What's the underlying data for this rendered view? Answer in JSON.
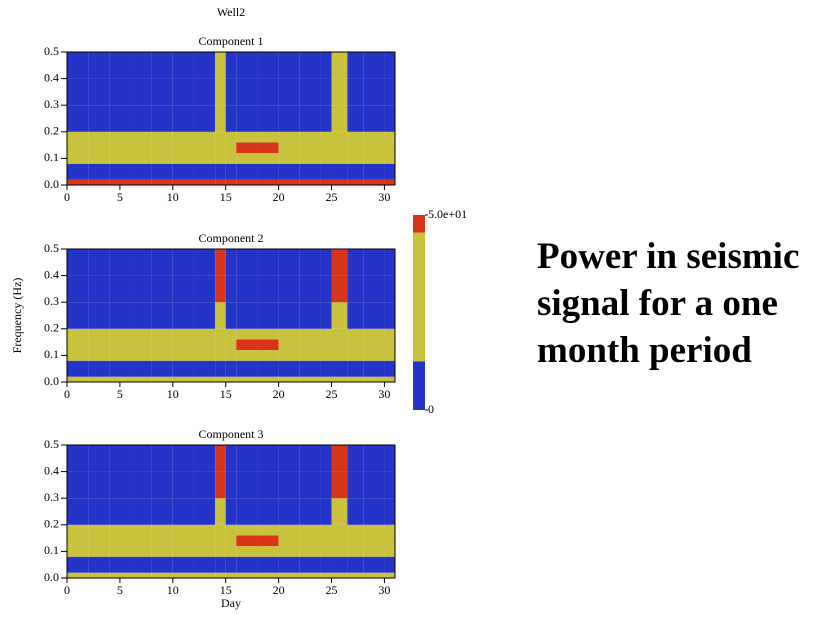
{
  "title": "Well2",
  "caption": [
    "Power in seismic",
    "signal for a one",
    "month period"
  ],
  "colorbar": {
    "lim": [
      0,
      50
    ],
    "ticks": [
      {
        "value": 50,
        "label": "5.0e+01"
      },
      0
    ],
    "levels": [
      {
        "from": 0,
        "color": "#2434c8"
      },
      {
        "from": 12.5,
        "color": "#c9c23c"
      },
      {
        "from": 45.5,
        "color": "#d8341a"
      }
    ]
  },
  "chart_data": [
    {
      "type": "heatmap",
      "title": "Component 1",
      "x_bins": [
        0,
        2,
        4,
        6,
        8,
        10,
        12,
        14,
        15,
        16,
        18,
        20,
        22,
        24,
        25,
        26.5,
        28,
        30,
        31
      ],
      "y_bins": [
        0,
        0.02,
        0.08,
        0.12,
        0.16,
        0.2,
        0.3,
        0.4,
        0.5
      ],
      "z": [
        [
          47,
          47,
          47,
          47,
          47,
          47,
          47,
          47,
          47,
          47,
          47,
          47,
          47,
          47,
          47,
          47,
          47,
          47
        ],
        [
          10,
          10,
          10,
          10,
          10,
          10,
          10,
          10,
          10,
          10,
          10,
          10,
          10,
          10,
          10,
          10,
          10,
          10
        ],
        [
          14,
          14,
          14,
          14,
          14,
          14,
          14,
          14,
          14,
          30,
          30,
          14,
          14,
          14,
          14,
          14,
          14,
          14
        ],
        [
          20,
          20,
          20,
          20,
          20,
          20,
          20,
          20,
          30,
          47,
          47,
          20,
          20,
          20,
          20,
          20,
          20,
          20
        ],
        [
          16,
          16,
          14,
          14,
          14,
          14,
          14,
          14,
          14,
          14,
          14,
          14,
          14,
          14,
          14,
          14,
          14,
          14
        ],
        [
          6,
          6,
          6,
          6,
          6,
          6,
          6,
          30,
          6,
          6,
          6,
          6,
          6,
          6,
          30,
          6,
          6,
          6
        ],
        [
          5,
          5,
          5,
          5,
          5,
          5,
          5,
          30,
          5,
          5,
          5,
          5,
          5,
          5,
          30,
          5,
          5,
          5
        ],
        [
          5,
          5,
          5,
          5,
          5,
          5,
          5,
          30,
          5,
          5,
          5,
          5,
          5,
          5,
          30,
          5,
          5,
          5
        ]
      ],
      "xlim": [
        0,
        31
      ],
      "ylim": [
        0,
        0.5
      ],
      "xticks": [
        0,
        5,
        10,
        15,
        20,
        25,
        30
      ],
      "yticks": [
        {
          "value": 0,
          "label": "0.0"
        },
        0.1,
        0.2,
        0.3,
        0.4,
        0.5
      ]
    },
    {
      "type": "heatmap",
      "title": "Component 2",
      "ylabel": "Frequency (Hz)",
      "x_bins": [
        0,
        2,
        4,
        6,
        8,
        10,
        12,
        14,
        15,
        16,
        18,
        20,
        22,
        24,
        25,
        26.5,
        28,
        30,
        31
      ],
      "y_bins": [
        0,
        0.02,
        0.08,
        0.12,
        0.16,
        0.2,
        0.3,
        0.4,
        0.5
      ],
      "z": [
        [
          28,
          28,
          28,
          28,
          28,
          28,
          28,
          28,
          28,
          28,
          28,
          28,
          28,
          28,
          28,
          28,
          28,
          28
        ],
        [
          8,
          8,
          8,
          8,
          8,
          8,
          8,
          8,
          8,
          8,
          8,
          8,
          8,
          8,
          8,
          8,
          8,
          8
        ],
        [
          16,
          16,
          16,
          16,
          16,
          16,
          16,
          16,
          16,
          30,
          30,
          16,
          16,
          16,
          16,
          16,
          16,
          16
        ],
        [
          22,
          22,
          22,
          22,
          22,
          22,
          22,
          22,
          30,
          47,
          47,
          22,
          22,
          22,
          22,
          22,
          22,
          22
        ],
        [
          18,
          18,
          18,
          18,
          18,
          18,
          18,
          18,
          18,
          18,
          18,
          18,
          18,
          18,
          18,
          18,
          18,
          18
        ],
        [
          12,
          12,
          12,
          12,
          12,
          12,
          12,
          30,
          12,
          12,
          12,
          12,
          12,
          12,
          30,
          12,
          12,
          12
        ],
        [
          8,
          8,
          8,
          8,
          8,
          8,
          8,
          47,
          8,
          8,
          8,
          8,
          8,
          8,
          47,
          8,
          8,
          8
        ],
        [
          8,
          8,
          8,
          8,
          8,
          8,
          8,
          47,
          8,
          8,
          8,
          8,
          8,
          8,
          47,
          8,
          8,
          8
        ]
      ],
      "xlim": [
        0,
        31
      ],
      "ylim": [
        0,
        0.5
      ],
      "xticks": [
        0,
        5,
        10,
        15,
        20,
        25,
        30
      ],
      "yticks": [
        {
          "value": 0,
          "label": "0.0"
        },
        0.1,
        0.2,
        0.3,
        0.4,
        0.5
      ]
    },
    {
      "type": "heatmap",
      "title": "Component 3",
      "xlabel": "Day",
      "x_bins": [
        0,
        2,
        4,
        6,
        8,
        10,
        12,
        14,
        15,
        16,
        18,
        20,
        22,
        24,
        25,
        26.5,
        28,
        30,
        31
      ],
      "y_bins": [
        0,
        0.02,
        0.08,
        0.12,
        0.16,
        0.2,
        0.3,
        0.4,
        0.5
      ],
      "z": [
        [
          28,
          28,
          28,
          28,
          28,
          28,
          28,
          28,
          28,
          28,
          28,
          28,
          28,
          28,
          28,
          28,
          28,
          28
        ],
        [
          8,
          8,
          8,
          8,
          8,
          8,
          8,
          8,
          8,
          8,
          8,
          8,
          8,
          8,
          8,
          8,
          8,
          8
        ],
        [
          14,
          14,
          14,
          14,
          14,
          14,
          14,
          14,
          14,
          30,
          30,
          14,
          14,
          14,
          14,
          14,
          14,
          14
        ],
        [
          20,
          20,
          20,
          20,
          20,
          20,
          20,
          20,
          30,
          47,
          47,
          20,
          20,
          20,
          20,
          20,
          20,
          20
        ],
        [
          16,
          16,
          16,
          16,
          16,
          16,
          16,
          16,
          16,
          16,
          16,
          16,
          16,
          16,
          16,
          16,
          16,
          16
        ],
        [
          10,
          10,
          10,
          10,
          10,
          10,
          10,
          30,
          10,
          10,
          10,
          10,
          10,
          10,
          30,
          10,
          10,
          10
        ],
        [
          7,
          7,
          7,
          7,
          7,
          7,
          7,
          47,
          7,
          7,
          7,
          7,
          7,
          7,
          47,
          7,
          7,
          7
        ],
        [
          7,
          7,
          7,
          7,
          7,
          7,
          7,
          47,
          7,
          7,
          7,
          7,
          7,
          7,
          47,
          7,
          7,
          7
        ]
      ],
      "xlim": [
        0,
        31
      ],
      "ylim": [
        0,
        0.5
      ],
      "xticks": [
        0,
        5,
        10,
        15,
        20,
        25,
        30
      ],
      "yticks": [
        {
          "value": 0,
          "label": "0.0"
        },
        0.1,
        0.2,
        0.3,
        0.4,
        0.5
      ]
    }
  ]
}
